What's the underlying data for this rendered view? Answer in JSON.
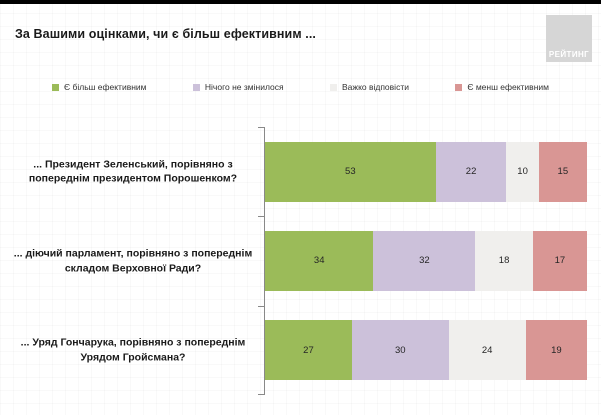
{
  "page": {
    "title": "За Вашими оцінками, чи є більш ефективним ...",
    "logo_text": "РЕЙТИНГ"
  },
  "chart_data": {
    "type": "bar",
    "orientation": "horizontal",
    "stacked": true,
    "title": "За Вашими оцінками, чи є більш ефективним ...",
    "categories": [
      "... Президент Зеленський, порівняно з попереднім президентом Порошенком?",
      "... діючий парламент, порівняно з попереднім складом Верховної Ради?",
      "... Уряд Гончарука, порівняно з попереднім Урядом Гройсмана?"
    ],
    "series": [
      {
        "name": "Є більш ефективним",
        "color": "#9BBB59",
        "values": [
          53,
          34,
          27
        ]
      },
      {
        "name": "Нічого не змінилося",
        "color": "#CCC1DA",
        "values": [
          22,
          32,
          30
        ]
      },
      {
        "name": "Важко відповісти",
        "color": "#F0EFED",
        "values": [
          10,
          18,
          24
        ]
      },
      {
        "name": "Є менш ефективним",
        "color": "#D99694",
        "values": [
          15,
          17,
          19
        ]
      }
    ],
    "value_axis_range": [
      0,
      100
    ],
    "legend_position": "top",
    "grid": false
  }
}
